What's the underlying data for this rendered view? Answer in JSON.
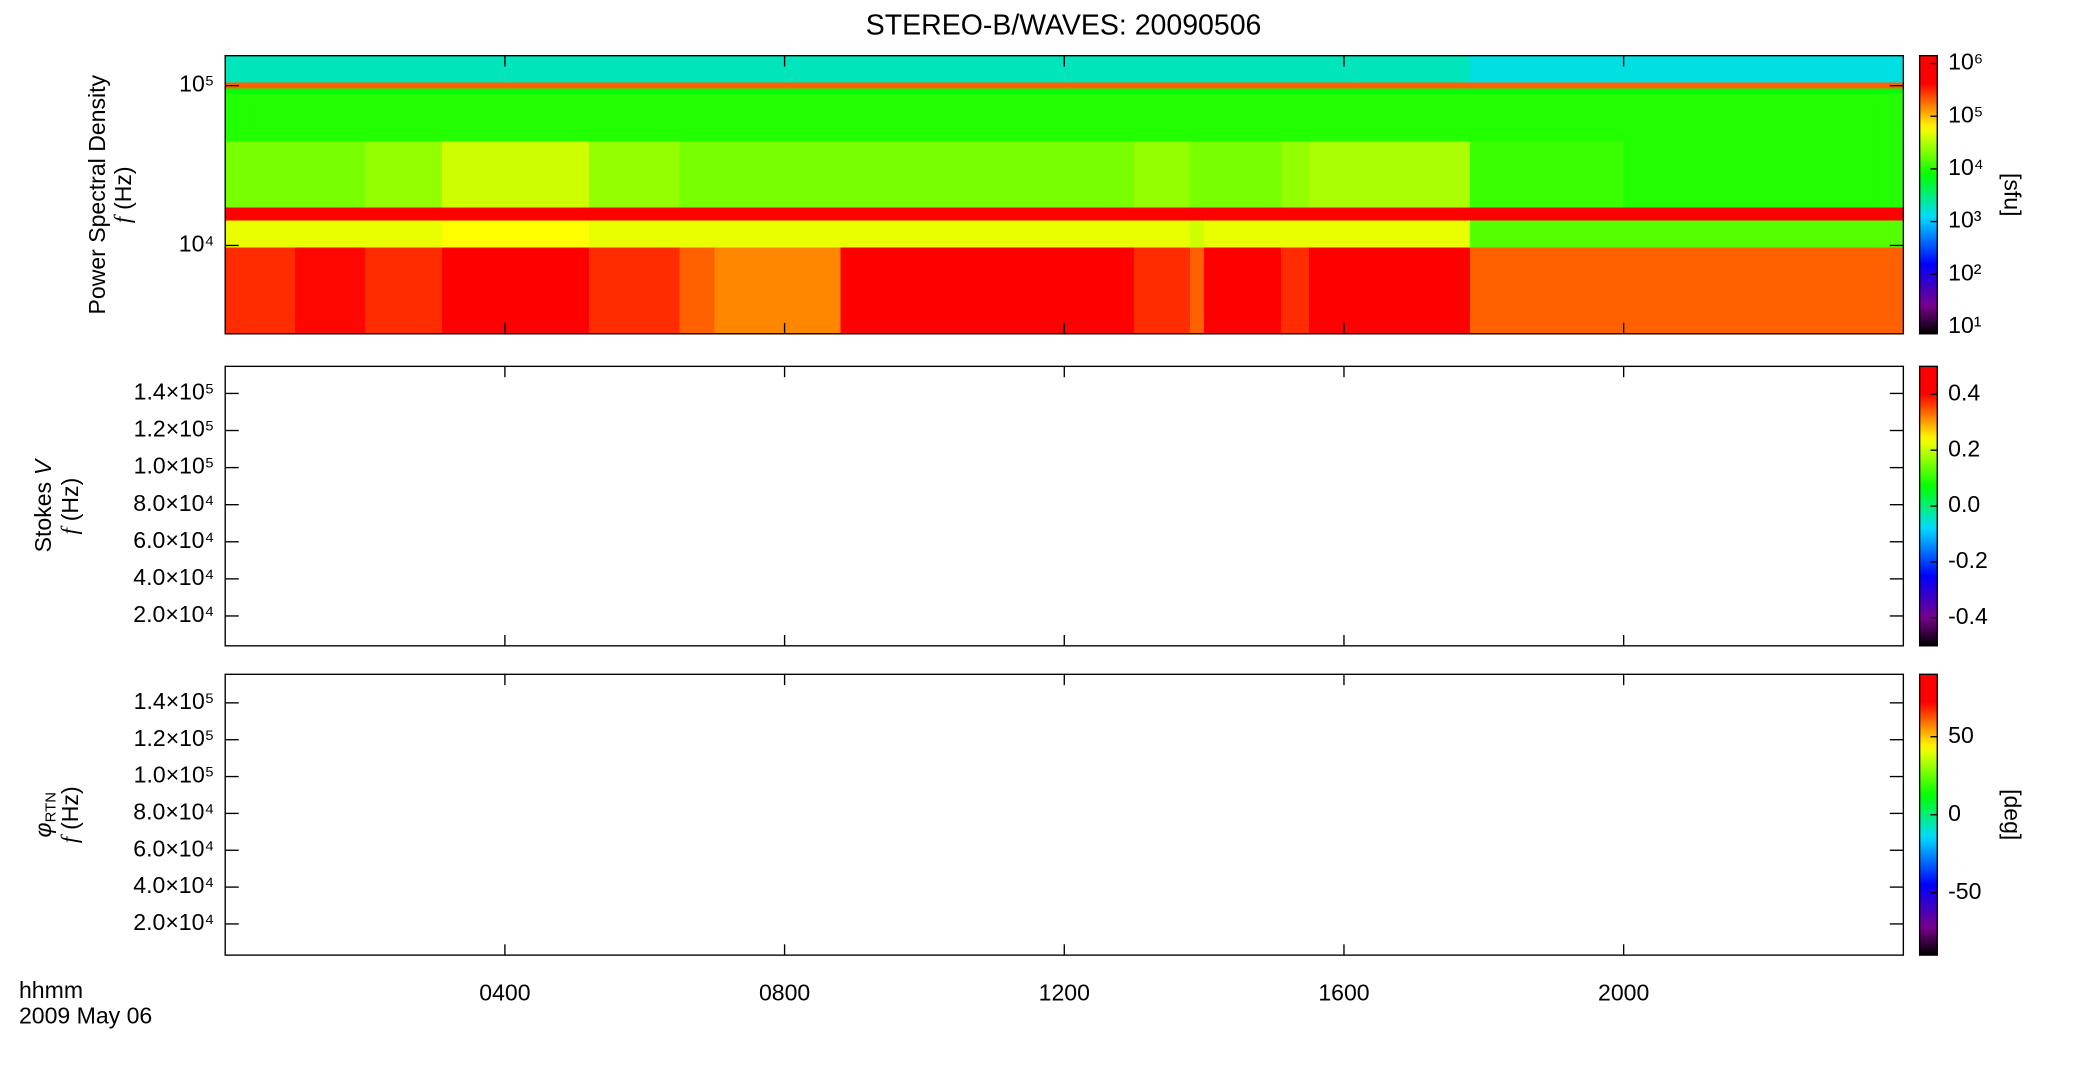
{
  "chart_data": [
    {
      "type": "heatmap",
      "title": "STEREO-B/WAVES: 20090506",
      "ylabel_name": "Power Spectral Density",
      "ylabel_var": "f",
      "ylabel_unit": "(Hz)",
      "xlim": [
        0,
        24
      ],
      "xticks": [
        4,
        8,
        12,
        16,
        20
      ],
      "ylim": [
        2800,
        154000
      ],
      "ylog": true,
      "yticks": [
        {
          "value": 10000,
          "label": "10⁴"
        },
        {
          "value": 100000,
          "label": "10⁵"
        }
      ],
      "xbins": [
        0,
        1,
        2,
        3.1,
        5.2,
        6.5,
        7,
        8.8,
        11,
        13,
        13.8,
        14,
        15.1,
        15.5,
        17.8,
        20,
        24
      ],
      "ybins": [
        2800,
        9800,
        14500,
        17500,
        45000,
        90000,
        97000,
        106000,
        154000
      ],
      "z": [
        [
          300000,
          400000,
          300000,
          1000000,
          300000,
          200000,
          150000,
          1000000,
          800000,
          300000,
          200000,
          700000,
          300000,
          1000000,
          200000,
          200000
        ],
        [
          50000,
          50000,
          50000,
          60000,
          50000,
          50000,
          50000,
          50000,
          50000,
          50000,
          40000,
          50000,
          50000,
          50000,
          15000,
          15000
        ],
        [
          1000000,
          1000000,
          1000000,
          1000000,
          1000000,
          1000000,
          1000000,
          1000000,
          1000000,
          1000000,
          1000000,
          1000000,
          1000000,
          1000000,
          1000000,
          1000000
        ],
        [
          20000,
          20000,
          25000,
          40000,
          25000,
          20000,
          20000,
          20000,
          20000,
          25000,
          20000,
          20000,
          25000,
          30000,
          12000,
          10000
        ],
        [
          10000,
          10000,
          10000,
          10000,
          10000,
          10000,
          10000,
          10000,
          10000,
          10000,
          10000,
          10000,
          10000,
          10000,
          10000,
          10000
        ],
        [
          7000,
          7000,
          7000,
          7000,
          7000,
          7000,
          7000,
          7000,
          7000,
          7000,
          7000,
          7000,
          7000,
          7000,
          7000,
          7000
        ],
        [
          200000,
          200000,
          200000,
          200000,
          200000,
          200000,
          200000,
          200000,
          200000,
          200000,
          200000,
          200000,
          200000,
          200000,
          200000,
          200000
        ],
        [
          2000,
          2000,
          2000,
          2000,
          2000,
          2000,
          2000,
          2000,
          2000,
          2000,
          2000,
          2000,
          2000,
          2000,
          1500,
          1500
        ]
      ],
      "clim": [
        7.4,
        1412000
      ],
      "clog": true,
      "cticks": [
        {
          "value": 10,
          "label": "10¹"
        },
        {
          "value": 100,
          "label": "10²"
        },
        {
          "value": 1000,
          "label": "10³"
        },
        {
          "value": 10000,
          "label": "10⁴"
        },
        {
          "value": 100000,
          "label": "10⁵"
        },
        {
          "value": 1000000,
          "label": "10⁶"
        }
      ],
      "clabel": "[sfu]"
    },
    {
      "type": "heatmap",
      "ylabel_name": "Stokes",
      "ylabel_sym": "V",
      "ylabel_var": "f",
      "ylabel_unit": "(Hz)",
      "xlim": [
        0,
        24
      ],
      "xticks": [
        4,
        8,
        12,
        16,
        20
      ],
      "ylim": [
        3900,
        154600
      ],
      "yticks": [
        {
          "value": 20000,
          "label": "2.0×10⁴"
        },
        {
          "value": 40000,
          "label": "4.0×10⁴"
        },
        {
          "value": 60000,
          "label": "6.0×10⁴"
        },
        {
          "value": 80000,
          "label": "8.0×10⁴"
        },
        {
          "value": 100000,
          "label": "1.0×10⁵"
        },
        {
          "value": 120000,
          "label": "1.2×10⁵"
        },
        {
          "value": 140000,
          "label": "1.4×10⁵"
        }
      ],
      "clim": [
        -0.5,
        0.5
      ],
      "cticks": [
        -0.4,
        -0.2,
        {
          "value": 0,
          "label": "0.0"
        },
        0.2,
        0.4
      ]
    },
    {
      "type": "heatmap",
      "ylabel_sym": "φ",
      "ylabel_sub": "RTN",
      "ylabel_var": "f",
      "ylabel_unit": "(Hz)",
      "xlim": [
        0,
        24
      ],
      "xticks": [
        {
          "value": 4,
          "label": "0400"
        },
        {
          "value": 8,
          "label": "0800"
        },
        {
          "value": 12,
          "label": "1200"
        },
        {
          "value": 16,
          "label": "1600"
        },
        {
          "value": 20,
          "label": "2000"
        }
      ],
      "time_label": "hhmm",
      "date_label": "2009 May 06",
      "ylim": [
        3070,
        155500
      ],
      "yticks": [
        {
          "value": 20000,
          "label": "2.0×10⁴"
        },
        {
          "value": 40000,
          "label": "4.0×10⁴"
        },
        {
          "value": 60000,
          "label": "6.0×10⁴"
        },
        {
          "value": 80000,
          "label": "8.0×10⁴"
        },
        {
          "value": 100000,
          "label": "1.0×10⁵"
        },
        {
          "value": 120000,
          "label": "1.2×10⁵"
        },
        {
          "value": 140000,
          "label": "1.4×10⁵"
        }
      ],
      "clim": [
        -90,
        90
      ],
      "cticks": [
        -50,
        0,
        50
      ],
      "clabel": "[deg]"
    }
  ]
}
